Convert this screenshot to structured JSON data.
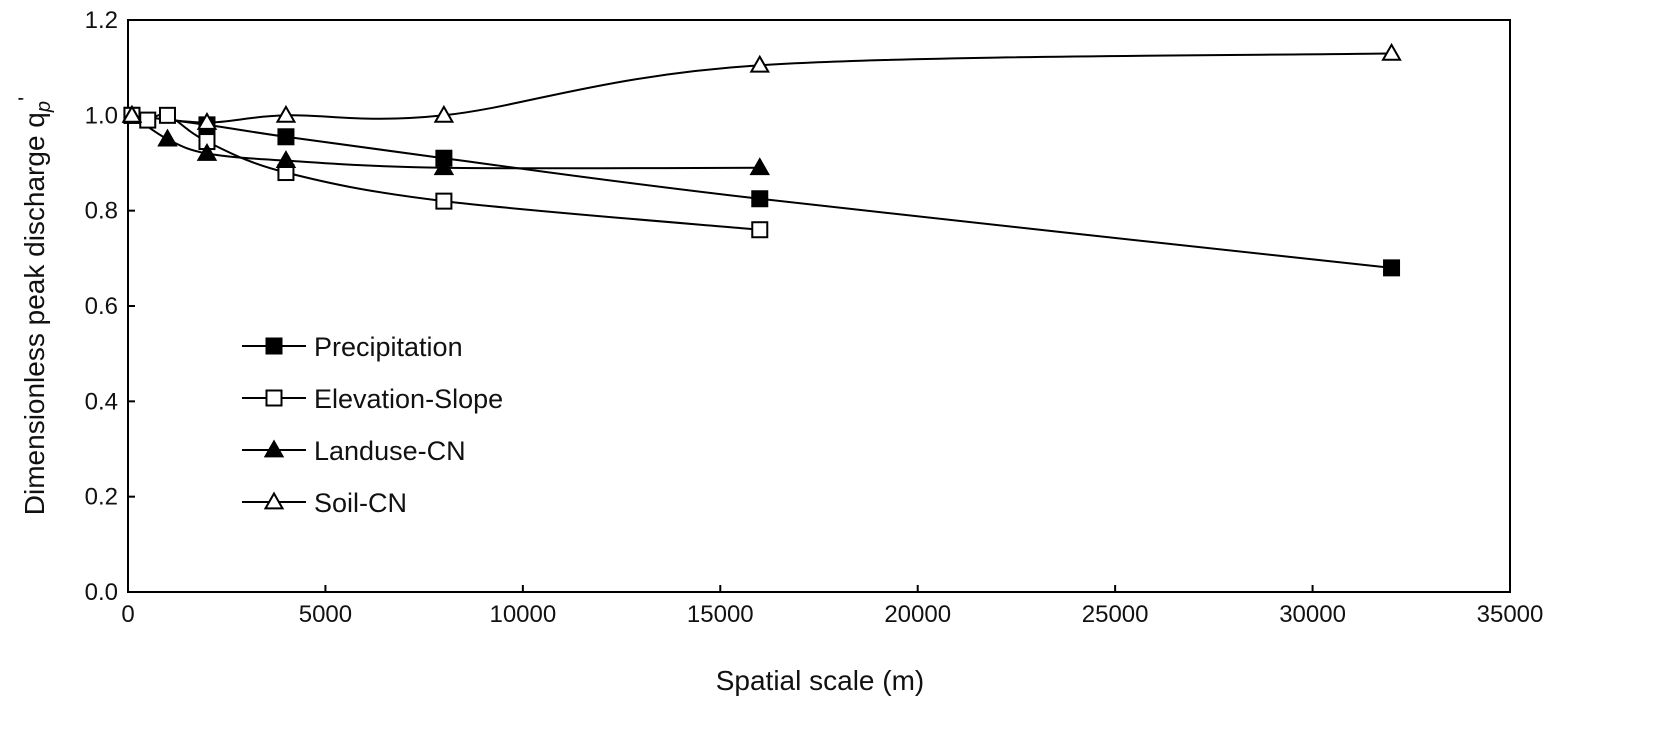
{
  "chart_data": {
    "type": "line",
    "title": "",
    "xlabel": "Spatial scale (m)",
    "ylabel": "Dimensionless peak discharge q",
    "ylabel_sub": "p",
    "ylabel_sup": "'",
    "xlim": [
      0,
      35000
    ],
    "ylim": [
      0,
      1.2
    ],
    "xticks": [
      0,
      5000,
      10000,
      15000,
      20000,
      25000,
      30000,
      35000
    ],
    "xtick_labels": [
      "0",
      "5000",
      "10000",
      "15000",
      "20000",
      "25000",
      "30000",
      "35000"
    ],
    "yticks": [
      0,
      0.2,
      0.4,
      0.6,
      0.8,
      1.0,
      1.2
    ],
    "ytick_labels": [
      "0.0",
      "0.2",
      "0.4",
      "0.6",
      "0.8",
      "1.0",
      "1.2"
    ],
    "grid": false,
    "legend_position": "lower-left",
    "series": [
      {
        "name": "Precipitation",
        "marker": "filled-square",
        "x": [
          100,
          2000,
          4000,
          8000,
          16000,
          32000
        ],
        "y": [
          1.0,
          0.98,
          0.955,
          0.91,
          0.825,
          0.68
        ]
      },
      {
        "name": "Elevation-Slope",
        "marker": "open-square",
        "x": [
          100,
          500,
          1000,
          2000,
          4000,
          8000,
          16000
        ],
        "y": [
          1.0,
          0.99,
          1.0,
          0.945,
          0.88,
          0.82,
          0.76
        ]
      },
      {
        "name": "Landuse-CN",
        "marker": "filled-triangle",
        "x": [
          100,
          1000,
          2000,
          4000,
          8000,
          16000
        ],
        "y": [
          1.0,
          0.95,
          0.92,
          0.905,
          0.89,
          0.89
        ]
      },
      {
        "name": "Soil-CN",
        "marker": "open-triangle",
        "x": [
          100,
          2000,
          4000,
          8000,
          16000,
          32000
        ],
        "y": [
          1.0,
          0.985,
          1.0,
          1.0,
          1.105,
          1.13
        ]
      }
    ]
  }
}
